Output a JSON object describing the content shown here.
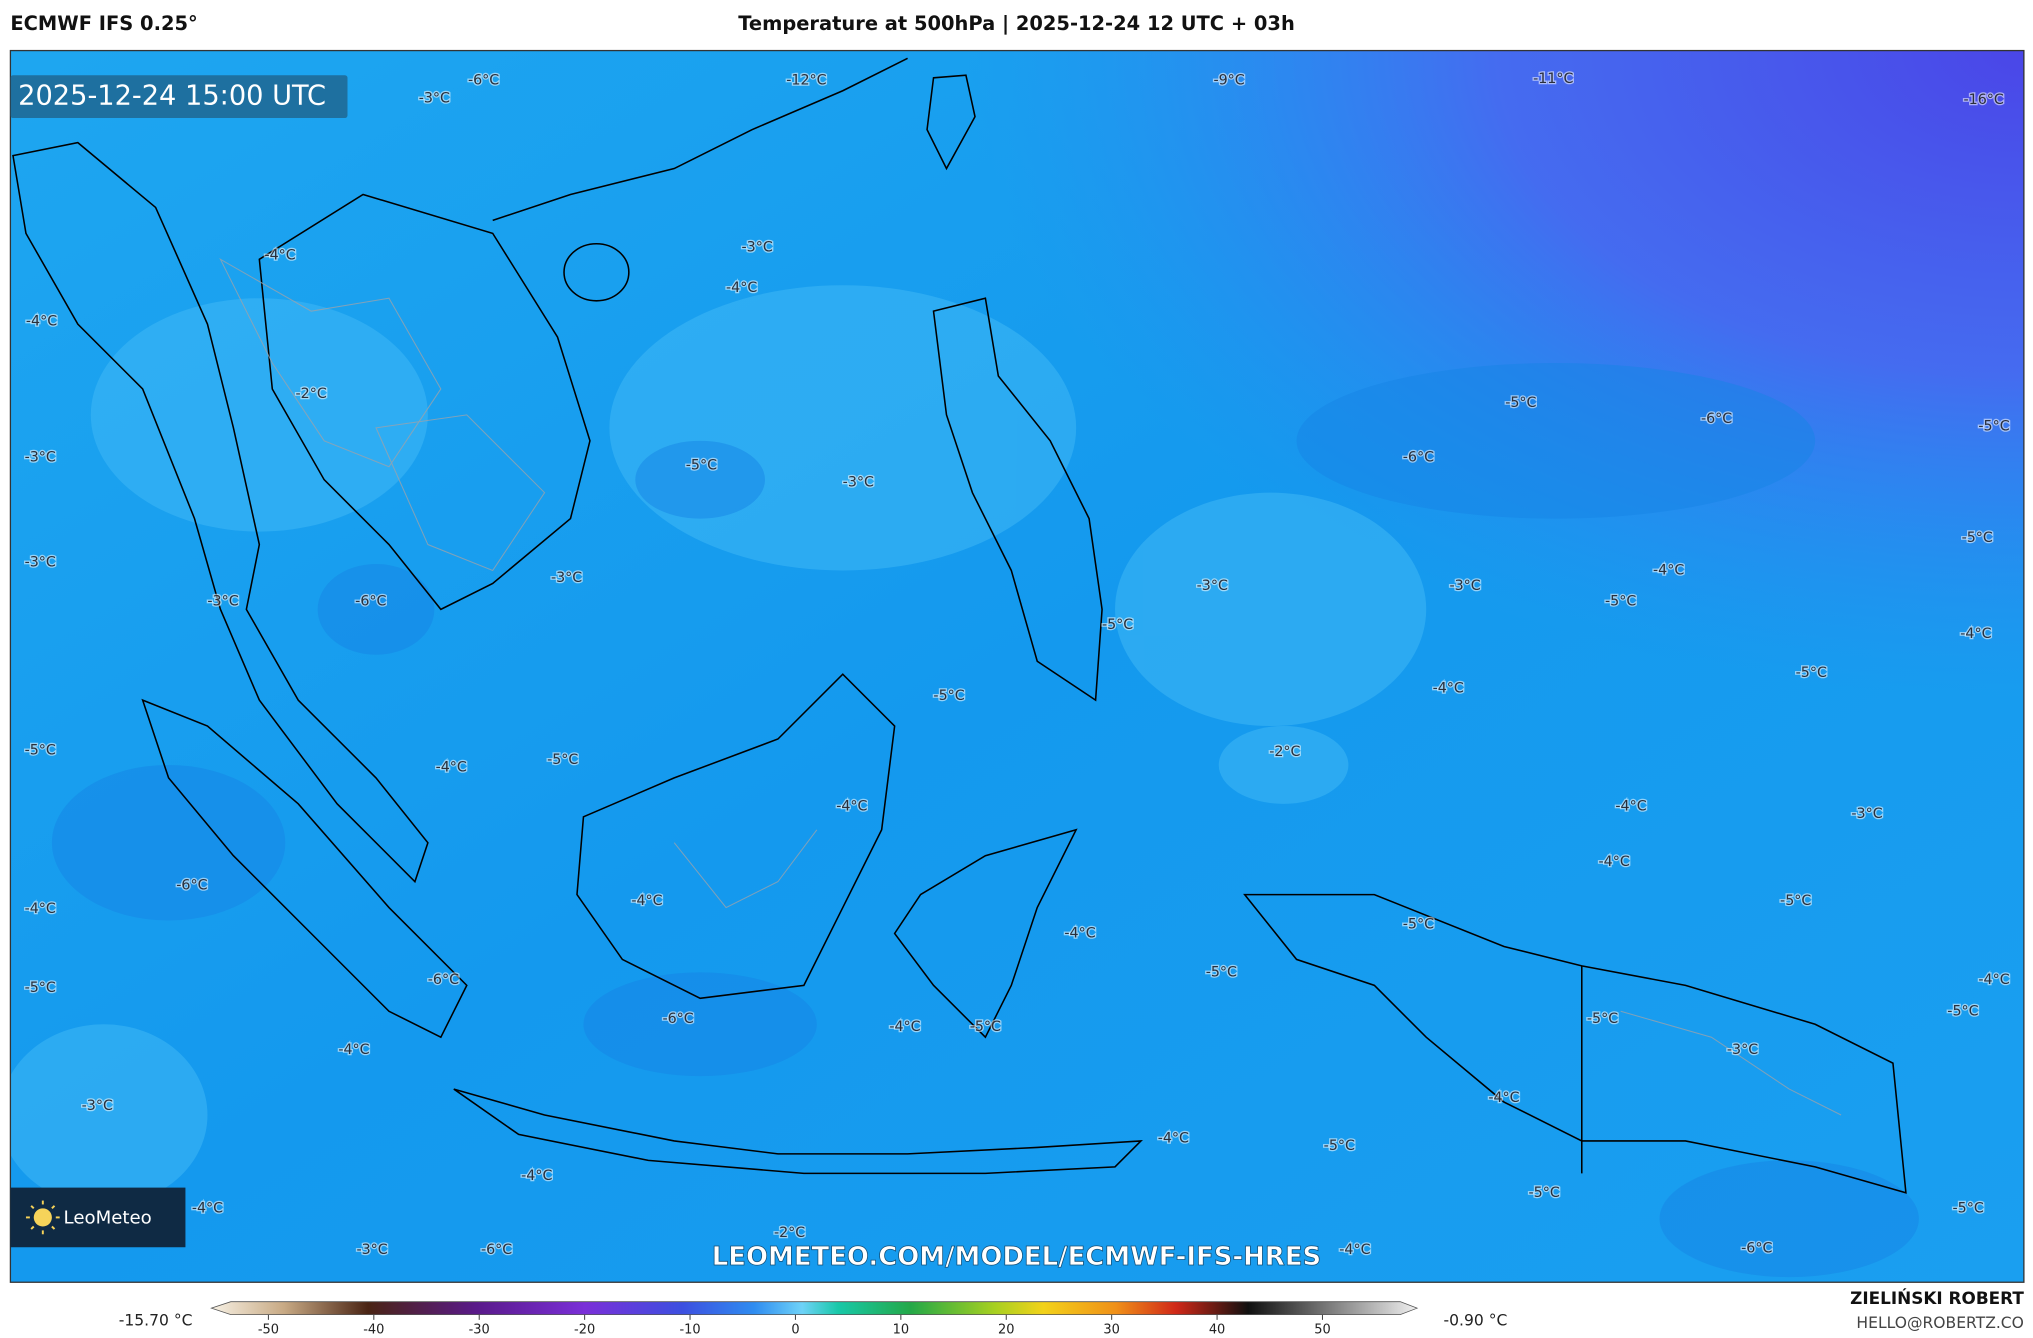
{
  "header": {
    "model": "ECMWF IFS 0.25°",
    "title": "Temperature at 500hPa | 2025-12-24 12 UTC + 03h"
  },
  "map": {
    "timestamp": "2025-12-24 15:00 UTC",
    "logo": "LeoMeteo",
    "watermark": "LEOMETEO.COM/MODEL/ECMWF-IFS-HRES",
    "contour_labels": [
      "-3°C",
      "-6°C",
      "-12°C",
      "-9°C",
      "-11°C",
      "-16°C",
      "-3°C",
      "-4°C",
      "-4°C",
      "-4°C",
      "-2°C",
      "-3°C",
      "-5°C",
      "-3°C",
      "-6°C",
      "-5°C",
      "-6°C",
      "-5°C",
      "-3°C",
      "-3°C",
      "-6°C",
      "-3°C",
      "-3°C",
      "-3°C",
      "-4°C",
      "-5°C",
      "-5°C",
      "-4°C",
      "-5°C",
      "-4°C",
      "-5°C",
      "-5°C",
      "-2°C",
      "-5°C",
      "-4°C",
      "-5°C",
      "-4°C",
      "-4°C",
      "-3°C",
      "-4°C",
      "-6°C",
      "-4°C",
      "-4°C",
      "-4°C",
      "-5°C",
      "-5°C",
      "-5°C",
      "-6°C",
      "-5°C",
      "-4°C",
      "-6°C",
      "-4°C",
      "-5°C",
      "-5°C",
      "-3°C",
      "-5°C",
      "-4°C",
      "-3°C",
      "-4°C",
      "-4°C",
      "-5°C",
      "-4°C",
      "-5°C",
      "-4°C",
      "-5°C",
      "-2°C",
      "-3°C",
      "-6°C",
      "-4°C",
      "-6°C"
    ]
  },
  "legend": {
    "min": "-15.70 °C",
    "max": "-0.90 °C",
    "ticks": [
      -50,
      -40,
      -30,
      -20,
      -10,
      0,
      10,
      20,
      30,
      40,
      50
    ]
  },
  "footer": {
    "author": "ZIELIŃSKI ROBERT",
    "email": "HELLO@ROBERTZ.CO"
  }
}
